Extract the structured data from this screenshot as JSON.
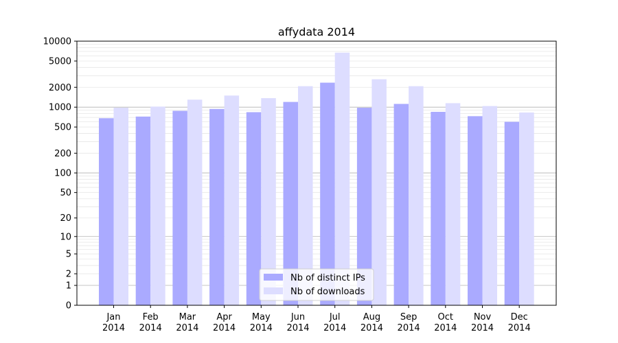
{
  "chart_data": {
    "type": "bar",
    "title": "affydata 2014",
    "xlabel": "",
    "ylabel": "",
    "yscale": "log(1+y)",
    "ylim": [
      0,
      10000
    ],
    "yticks": [
      "0",
      "1",
      "2",
      "5",
      "10",
      "20",
      "50",
      "100",
      "200",
      "500",
      "1000",
      "2000",
      "5000",
      "10000"
    ],
    "grid": "horizontal major and minor lines",
    "legend_position": "bottom-center",
    "categories": [
      "Jan",
      "Feb",
      "Mar",
      "Apr",
      "May",
      "Jun",
      "Jul",
      "Aug",
      "Sep",
      "Oct",
      "Nov",
      "Dec"
    ],
    "year": "2014",
    "series": [
      {
        "name": "Nb of distinct IPs",
        "color": "#aaaaff",
        "values": [
          680,
          720,
          880,
          940,
          840,
          1200,
          2350,
          980,
          1120,
          850,
          730,
          600
        ]
      },
      {
        "name": "Nb of downloads",
        "color": "#ddddff",
        "values": [
          980,
          1020,
          1300,
          1500,
          1370,
          2080,
          6700,
          2650,
          2080,
          1150,
          1040,
          830
        ]
      }
    ]
  }
}
